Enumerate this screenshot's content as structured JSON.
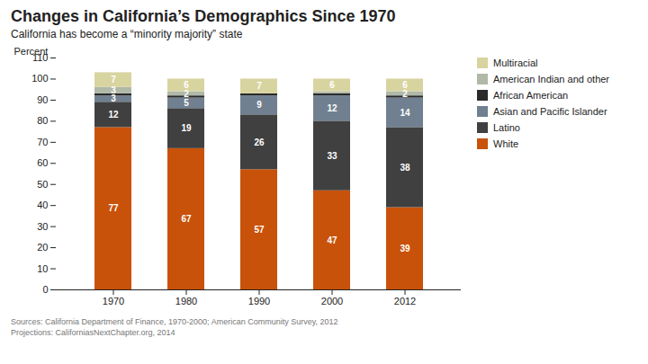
{
  "chart_data": {
    "type": "bar",
    "stacked": true,
    "title": "Changes in California’s Demographics Since 1970",
    "subtitle": "California has become a “minority majority” state",
    "source": "Sources: California Department of Finance, 1970-2000; American Community Survey, 2012\nProjections: CaliforniasNextChapter.org, 2014",
    "categories": [
      "1970",
      "1980",
      "1990",
      "2000",
      "2012"
    ],
    "ylabel": "Percent",
    "ylim": [
      0,
      110
    ],
    "yticks": [
      0,
      10,
      20,
      30,
      40,
      50,
      60,
      70,
      80,
      90,
      100,
      110
    ],
    "grid": false,
    "legend": "right",
    "data_labels": true,
    "series": [
      {
        "name": "White",
        "color": "#c8520a",
        "values": [
          77,
          67,
          57,
          47,
          39
        ],
        "value_labels": [
          "77",
          "67",
          "57",
          "47",
          "39"
        ]
      },
      {
        "name": "Latino",
        "color": "#404040",
        "values": [
          12,
          19,
          26,
          33,
          38
        ],
        "value_labels": [
          "12",
          "19",
          "26",
          "33",
          "38"
        ]
      },
      {
        "name": "Asian and Pacific Islander",
        "color": "#708090",
        "values": [
          3,
          5,
          9,
          12,
          14
        ],
        "value_labels": [
          "3",
          "5",
          "9",
          "12",
          "14"
        ]
      },
      {
        "name": "African American",
        "color": "#2a2a2a",
        "values": [
          1,
          1,
          1,
          1,
          1
        ],
        "value_labels": [
          null,
          null,
          null,
          null,
          null
        ]
      },
      {
        "name": "American Indian and other",
        "color": "#b0b8a8",
        "values": [
          3,
          2,
          0,
          1,
          2
        ],
        "value_labels": [
          "3",
          "2",
          null,
          null,
          "2"
        ]
      },
      {
        "name": "Multiracial",
        "color": "#d8d4a0",
        "values": [
          7,
          6,
          7,
          6,
          6
        ],
        "value_labels": [
          "7",
          "6",
          "7",
          "6",
          "6"
        ]
      }
    ]
  }
}
